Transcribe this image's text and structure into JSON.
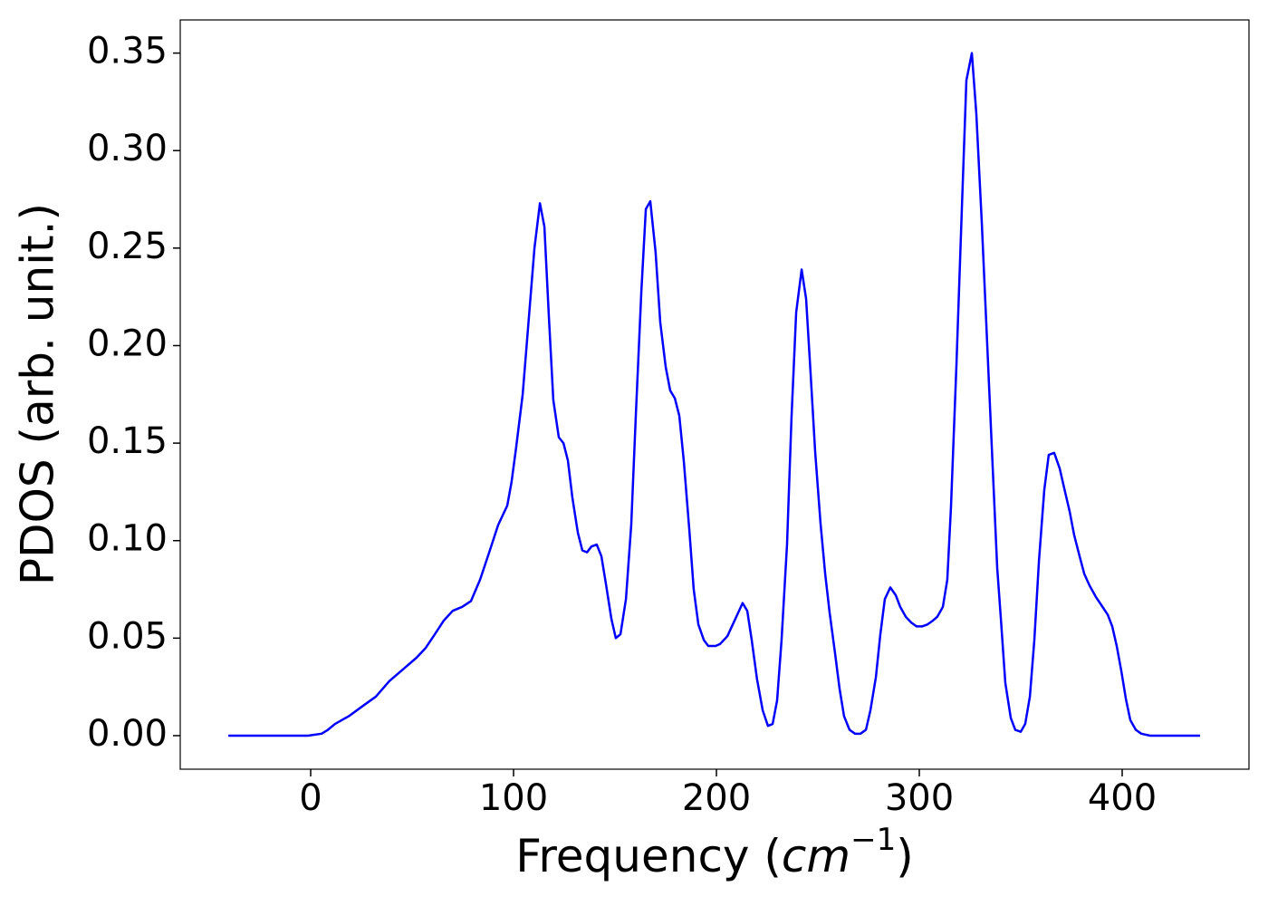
{
  "chart_data": {
    "type": "line",
    "xlabel": [
      "Frequency (",
      "cm",
      "−1",
      ")"
    ],
    "ylabel": "PDOS (arb. unit.)",
    "xlim": [
      -64.3,
      462.5
    ],
    "ylim": [
      -0.0172,
      0.367
    ],
    "xticks": [
      0,
      100,
      200,
      300,
      400
    ],
    "yticks": [
      {
        "value": 0,
        "label": "0.00"
      },
      {
        "value": 0.05,
        "label": "0.05"
      },
      {
        "value": 0.1,
        "label": "0.10"
      },
      {
        "value": 0.15,
        "label": "0.15"
      },
      {
        "value": 0.2,
        "label": "0.20"
      },
      {
        "value": 0.25,
        "label": "0.25"
      },
      {
        "value": 0.3,
        "label": "0.30"
      },
      {
        "value": 0.35,
        "label": "0.35"
      }
    ],
    "x": [
      -40.6,
      -1.3,
      5.4,
      8.5,
      12,
      18.8,
      25.4,
      32.1,
      38.8,
      45.5,
      52.2,
      56.7,
      61.2,
      65.6,
      70,
      74.6,
      79,
      83.5,
      88,
      92.4,
      96.9,
      99,
      101.3,
      104.5,
      107.6,
      110.3,
      113,
      115.2,
      117.4,
      119.6,
      122.3,
      124.6,
      126.8,
      129,
      131.7,
      133.9,
      136.2,
      138.4,
      141,
      143.3,
      145.5,
      148.2,
      150.4,
      152.7,
      155.4,
      158,
      160.3,
      163,
      165.2,
      167.4,
      170,
      172.3,
      175,
      177.2,
      179.5,
      181.7,
      183.9,
      186.6,
      188.8,
      191.1,
      193.8,
      196,
      199.6,
      201.8,
      205.4,
      207.6,
      210.7,
      212.9,
      215.2,
      217.4,
      220,
      222.8,
      225.4,
      227.7,
      229.9,
      232.1,
      234.8,
      237,
      239.3,
      242,
      244.2,
      246.4,
      248.7,
      251.3,
      253.6,
      255.8,
      258.5,
      260.7,
      262.9,
      265.6,
      268.3,
      271,
      273.7,
      275.9,
      278.6,
      280.8,
      283,
      285.7,
      288.4,
      290.6,
      293.3,
      296,
      298.7,
      301.3,
      304,
      306.7,
      308.9,
      311.6,
      313.8,
      315.6,
      318.3,
      321,
      323.2,
      325.9,
      328.1,
      330.8,
      333.5,
      336.2,
      338.4,
      340.2,
      342.4,
      345.1,
      347.3,
      350,
      352.2,
      354.5,
      356.7,
      359,
      361.6,
      363.8,
      366.5,
      369.2,
      371.4,
      374.1,
      376.3,
      379,
      381.3,
      383.9,
      387.1,
      389.7,
      392.9,
      395.1,
      397.3,
      399.6,
      401.8,
      404,
      406.7,
      409.4,
      413.8,
      438.4
    ],
    "series": [
      {
        "color": "#0000ff",
        "values": [
          0,
          0,
          0.001,
          0.003,
          0.006,
          0.01,
          0.015,
          0.02,
          0.028,
          0.034,
          0.04,
          0.045,
          0.052,
          0.059,
          0.064,
          0.066,
          0.069,
          0.08,
          0.094,
          0.108,
          0.118,
          0.13,
          0.148,
          0.175,
          0.215,
          0.25,
          0.273,
          0.261,
          0.215,
          0.172,
          0.153,
          0.15,
          0.141,
          0.122,
          0.104,
          0.095,
          0.094,
          0.097,
          0.098,
          0.092,
          0.078,
          0.06,
          0.05,
          0.052,
          0.07,
          0.108,
          0.165,
          0.228,
          0.27,
          0.274,
          0.248,
          0.212,
          0.189,
          0.177,
          0.173,
          0.164,
          0.141,
          0.106,
          0.075,
          0.057,
          0.049,
          0.046,
          0.046,
          0.047,
          0.051,
          0.056,
          0.063,
          0.068,
          0.064,
          0.049,
          0.029,
          0.013,
          0.005,
          0.006,
          0.018,
          0.049,
          0.098,
          0.163,
          0.217,
          0.239,
          0.224,
          0.186,
          0.145,
          0.109,
          0.083,
          0.063,
          0.042,
          0.024,
          0.01,
          0.003,
          0.001,
          0.001,
          0.003,
          0.013,
          0.03,
          0.052,
          0.07,
          0.076,
          0.072,
          0.066,
          0.061,
          0.058,
          0.056,
          0.056,
          0.057,
          0.059,
          0.061,
          0.066,
          0.08,
          0.117,
          0.19,
          0.271,
          0.336,
          0.35,
          0.319,
          0.263,
          0.2,
          0.137,
          0.086,
          0.06,
          0.027,
          0.009,
          0.003,
          0.002,
          0.006,
          0.02,
          0.049,
          0.09,
          0.126,
          0.144,
          0.145,
          0.137,
          0.127,
          0.115,
          0.103,
          0.092,
          0.083,
          0.077,
          0.071,
          0.067,
          0.062,
          0.056,
          0.046,
          0.033,
          0.019,
          0.008,
          0.003,
          0.001,
          0,
          0
        ]
      }
    ]
  }
}
